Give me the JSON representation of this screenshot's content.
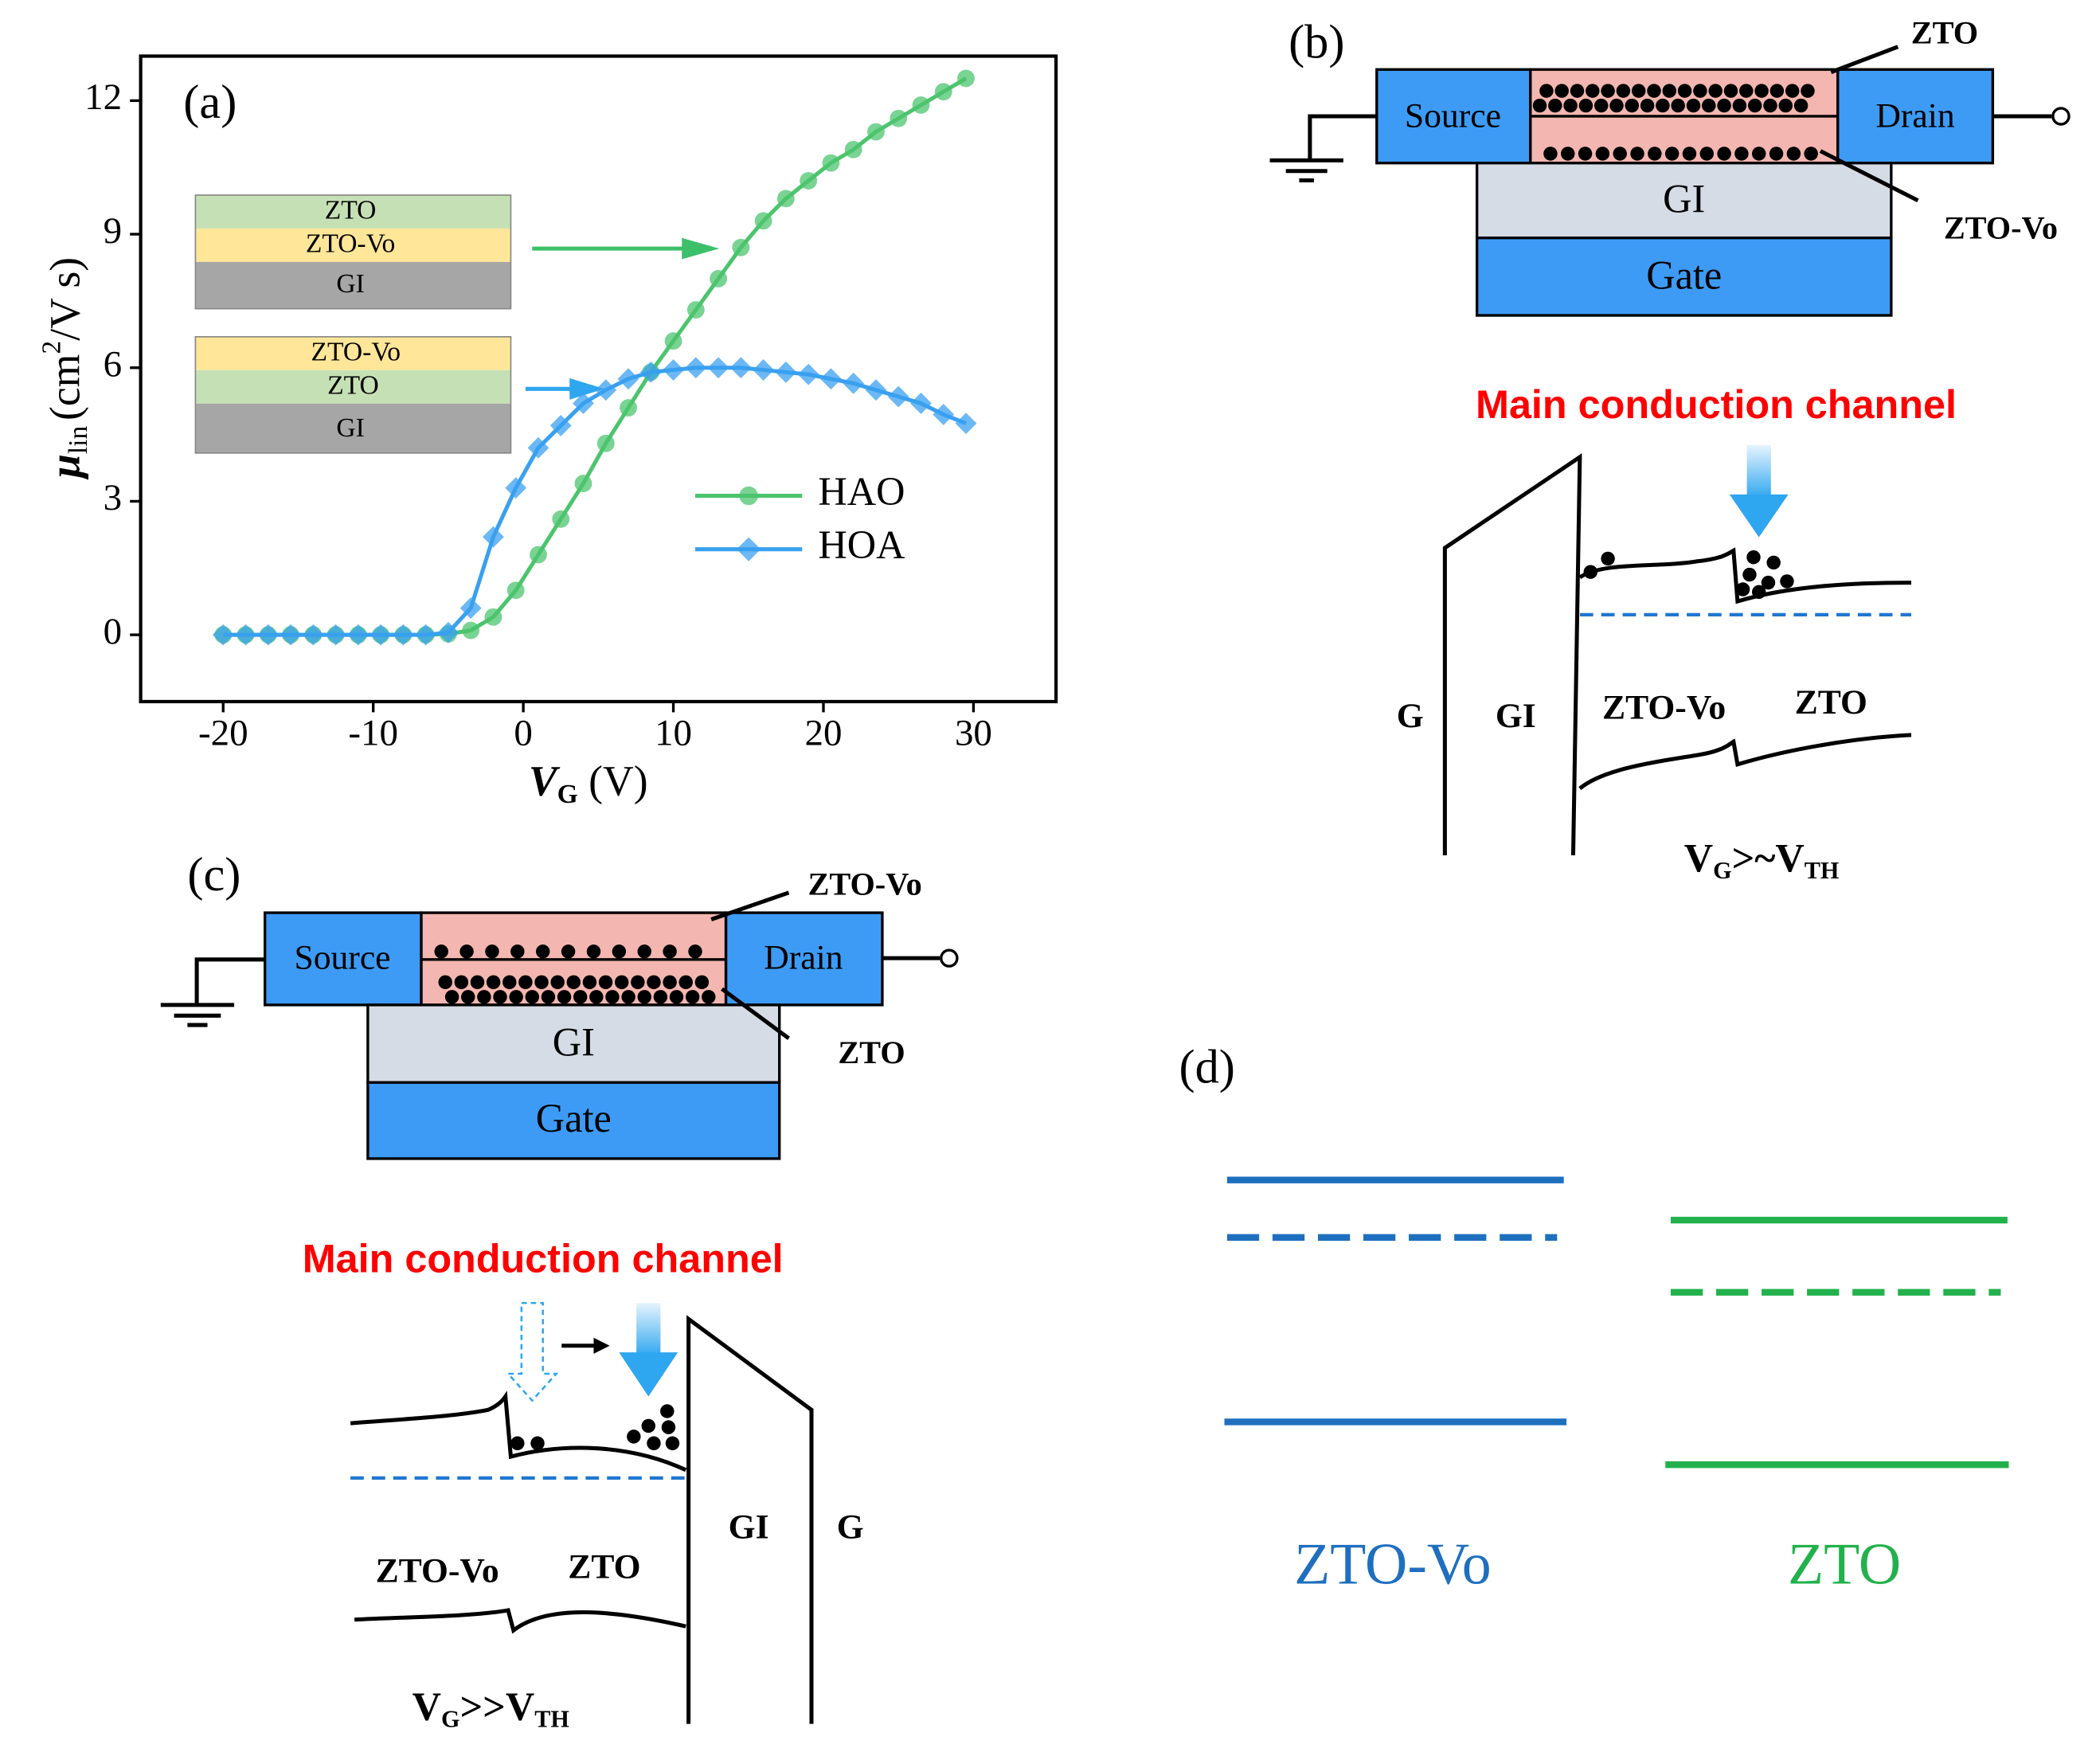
{
  "chart_data": {
    "type": "line",
    "panel_label": "(a)",
    "x": [
      -20,
      -18.5,
      -17,
      -15.5,
      -14,
      -12.5,
      -11,
      -9.5,
      -8,
      -6.5,
      -5,
      -3.5,
      -2,
      -0.5,
      1,
      2.5,
      4,
      5.5,
      7,
      8.5,
      10,
      11.5,
      13,
      14.5,
      16,
      17.5,
      19,
      20.5,
      22,
      23.5,
      25,
      26.5,
      28,
      29.5
    ],
    "series": [
      {
        "name": "HAO",
        "color": "#4cc46e",
        "marker": "circle",
        "values": [
          0,
          0,
          0,
          0,
          0,
          0,
          0,
          0,
          0,
          0,
          0.02,
          0.1,
          0.4,
          1.0,
          1.8,
          2.6,
          3.4,
          4.3,
          5.1,
          5.9,
          6.6,
          7.3,
          8.0,
          8.7,
          9.3,
          9.8,
          10.2,
          10.6,
          10.9,
          11.3,
          11.6,
          11.9,
          12.2,
          12.5
        ]
      },
      {
        "name": "HOA",
        "color": "#3aa0f0",
        "marker": "diamond",
        "values": [
          0,
          0,
          0,
          0,
          0,
          0,
          0,
          0,
          0,
          0,
          0.05,
          0.6,
          2.2,
          3.3,
          4.2,
          4.7,
          5.2,
          5.5,
          5.75,
          5.9,
          5.95,
          6.0,
          6.0,
          6.0,
          5.95,
          5.9,
          5.85,
          5.75,
          5.65,
          5.5,
          5.35,
          5.2,
          4.95,
          4.75
        ]
      }
    ],
    "xlim": [
      -25.5,
      35.5
    ],
    "ylim": [
      -1.5,
      13
    ],
    "xticks": [
      -20,
      -10,
      0,
      10,
      20,
      30
    ],
    "yticks": [
      0,
      3,
      6,
      9,
      12
    ],
    "x_label": {
      "symbol": "V",
      "subscript": "G",
      "unit": "(V)"
    },
    "y_label": {
      "symbol": "μ",
      "subscript": "lin",
      "unit_start": "(cm",
      "superscript": "2",
      "unit_end": "/V s)"
    },
    "insets": [
      {
        "layers": [
          "ZTO",
          "ZTO-Vo",
          "GI"
        ]
      },
      {
        "layers": [
          "ZTO-Vo",
          "ZTO",
          "GI"
        ]
      }
    ]
  },
  "panel_b": {
    "label": "(b)",
    "device": {
      "source": "Source",
      "drain": "Drain",
      "gi": "GI",
      "gate": "Gate",
      "top_layer": "ZTO",
      "bottom_layer": "ZTO-Vo"
    },
    "band": {
      "title": "Main conduction channel",
      "regions": [
        "G",
        "GI",
        "ZTO-Vo",
        "ZTO"
      ],
      "condition": {
        "v": "V",
        "v_sub": "G",
        "relation": ">~",
        "vth": "V",
        "vth_sub": "TH"
      }
    }
  },
  "panel_c": {
    "label": "(c)",
    "device": {
      "source": "Source",
      "drain": "Drain",
      "gi": "GI",
      "gate": "Gate",
      "top_layer": "ZTO-Vo",
      "bottom_layer": "ZTO"
    },
    "band": {
      "title": "Main conduction channel",
      "regions": [
        "ZTO-Vo",
        "ZTO",
        "GI",
        "G"
      ],
      "condition": {
        "v": "V",
        "v_sub": "G",
        "relation": ">>",
        "vth": "V",
        "vth_sub": "TH"
      }
    }
  },
  "panel_d": {
    "label": "(d)",
    "materials": [
      "ZTO-Vo",
      "ZTO"
    ]
  }
}
